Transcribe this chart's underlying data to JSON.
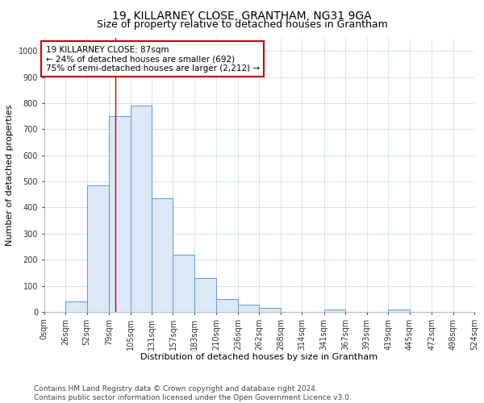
{
  "title": "19, KILLARNEY CLOSE, GRANTHAM, NG31 9GA",
  "subtitle": "Size of property relative to detached houses in Grantham",
  "xlabel": "Distribution of detached houses by size in Grantham",
  "ylabel": "Number of detached properties",
  "bar_left_edges": [
    0,
    26,
    52,
    79,
    105,
    131,
    157,
    183,
    210,
    236,
    262,
    288,
    314,
    341,
    367,
    393,
    419,
    445,
    472,
    498
  ],
  "bar_widths": [
    26,
    26,
    27,
    26,
    26,
    26,
    26,
    27,
    26,
    26,
    26,
    26,
    27,
    26,
    26,
    26,
    26,
    27,
    26,
    26
  ],
  "bar_heights": [
    0,
    40,
    485,
    750,
    790,
    435,
    220,
    128,
    50,
    28,
    15,
    0,
    0,
    8,
    0,
    0,
    8,
    0,
    0,
    0
  ],
  "bar_facecolor": "#dce8f5",
  "bar_edgecolor": "#5b9bd5",
  "tick_labels": [
    "0sqm",
    "26sqm",
    "52sqm",
    "79sqm",
    "105sqm",
    "131sqm",
    "157sqm",
    "183sqm",
    "210sqm",
    "236sqm",
    "262sqm",
    "288sqm",
    "314sqm",
    "341sqm",
    "367sqm",
    "393sqm",
    "419sqm",
    "445sqm",
    "472sqm",
    "498sqm",
    "524sqm"
  ],
  "property_line_x": 87,
  "property_line_color": "#cc0000",
  "annotation_text": "19 KILLARNEY CLOSE: 87sqm\n← 24% of detached houses are smaller (692)\n75% of semi-detached houses are larger (2,212) →",
  "annotation_box_color": "#cc0000",
  "ylim": [
    0,
    1050
  ],
  "yticks": [
    0,
    100,
    200,
    300,
    400,
    500,
    600,
    700,
    800,
    900,
    1000
  ],
  "grid_color": "#c8d8ec",
  "footnote": "Contains HM Land Registry data © Crown copyright and database right 2024.\nContains public sector information licensed under the Open Government Licence v3.0.",
  "bg_color": "#ffffff",
  "title_fontsize": 10,
  "subtitle_fontsize": 9,
  "axis_label_fontsize": 8,
  "tick_fontsize": 7,
  "annotation_fontsize": 7.5,
  "footnote_fontsize": 6.5
}
